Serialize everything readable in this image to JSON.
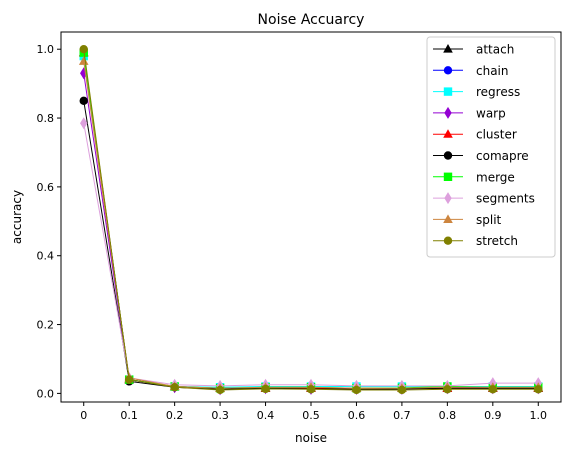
{
  "chart_data": {
    "type": "line",
    "title": "Noise Accuarcy",
    "xlabel": "noise",
    "ylabel": "accuracy",
    "x": [
      0,
      0.1,
      0.2,
      0.3,
      0.4,
      0.5,
      0.6,
      0.7,
      0.8,
      0.9,
      1.0
    ],
    "x_tick_labels": [
      "0",
      "0.1",
      "0.2",
      "0.3",
      "0.4",
      "0.5",
      "0.6",
      "0.7",
      "0.8",
      "0.9",
      "1.0"
    ],
    "y_ticks": [
      0.0,
      0.2,
      0.4,
      0.6,
      0.8,
      1.0
    ],
    "y_tick_labels": [
      "0.0",
      "0.2",
      "0.4",
      "0.6",
      "0.8",
      "1.0"
    ],
    "xlim": [
      -0.05,
      1.05
    ],
    "ylim": [
      -0.025,
      1.05
    ],
    "grid": false,
    "legend_position": "top-right",
    "series": [
      {
        "name": "attach",
        "color": "#000000",
        "marker": "triangle",
        "values": [
          0.99,
          0.04,
          0.02,
          0.015,
          0.015,
          0.015,
          0.015,
          0.015,
          0.015,
          0.015,
          0.015
        ]
      },
      {
        "name": "chain",
        "color": "#0000ff",
        "marker": "circle",
        "values": [
          0.99,
          0.04,
          0.02,
          0.015,
          0.015,
          0.015,
          0.012,
          0.013,
          0.015,
          0.015,
          0.015
        ]
      },
      {
        "name": "regress",
        "color": "#00ffff",
        "marker": "square",
        "values": [
          0.98,
          0.04,
          0.02,
          0.018,
          0.02,
          0.02,
          0.02,
          0.02,
          0.02,
          0.02,
          0.02
        ]
      },
      {
        "name": "warp",
        "color": "#9400d3",
        "marker": "diamond",
        "values": [
          0.93,
          0.04,
          0.018,
          0.012,
          0.015,
          0.013,
          0.013,
          0.013,
          0.015,
          0.015,
          0.015
        ]
      },
      {
        "name": "cluster",
        "color": "#ff0000",
        "marker": "triangle",
        "values": [
          0.99,
          0.04,
          0.02,
          0.015,
          0.015,
          0.015,
          0.015,
          0.015,
          0.015,
          0.015,
          0.015
        ]
      },
      {
        "name": "comapre",
        "color": "#000000",
        "marker": "circle",
        "values": [
          0.85,
          0.035,
          0.018,
          0.012,
          0.015,
          0.013,
          0.012,
          0.013,
          0.015,
          0.015,
          0.015
        ]
      },
      {
        "name": "merge",
        "color": "#00ff00",
        "marker": "square",
        "values": [
          0.99,
          0.04,
          0.02,
          0.015,
          0.018,
          0.018,
          0.015,
          0.016,
          0.02,
          0.018,
          0.018
        ]
      },
      {
        "name": "segments",
        "color": "#dda0dd",
        "marker": "diamond",
        "values": [
          0.785,
          0.045,
          0.025,
          0.022,
          0.025,
          0.025,
          0.022,
          0.022,
          0.022,
          0.03,
          0.03
        ]
      },
      {
        "name": "split",
        "color": "#cd853f",
        "marker": "triangle",
        "values": [
          0.965,
          0.045,
          0.02,
          0.015,
          0.018,
          0.018,
          0.015,
          0.015,
          0.018,
          0.018,
          0.018
        ]
      },
      {
        "name": "stretch",
        "color": "#808000",
        "marker": "circle",
        "values": [
          1.0,
          0.04,
          0.018,
          0.01,
          0.013,
          0.012,
          0.01,
          0.01,
          0.012,
          0.012,
          0.012
        ]
      }
    ]
  }
}
